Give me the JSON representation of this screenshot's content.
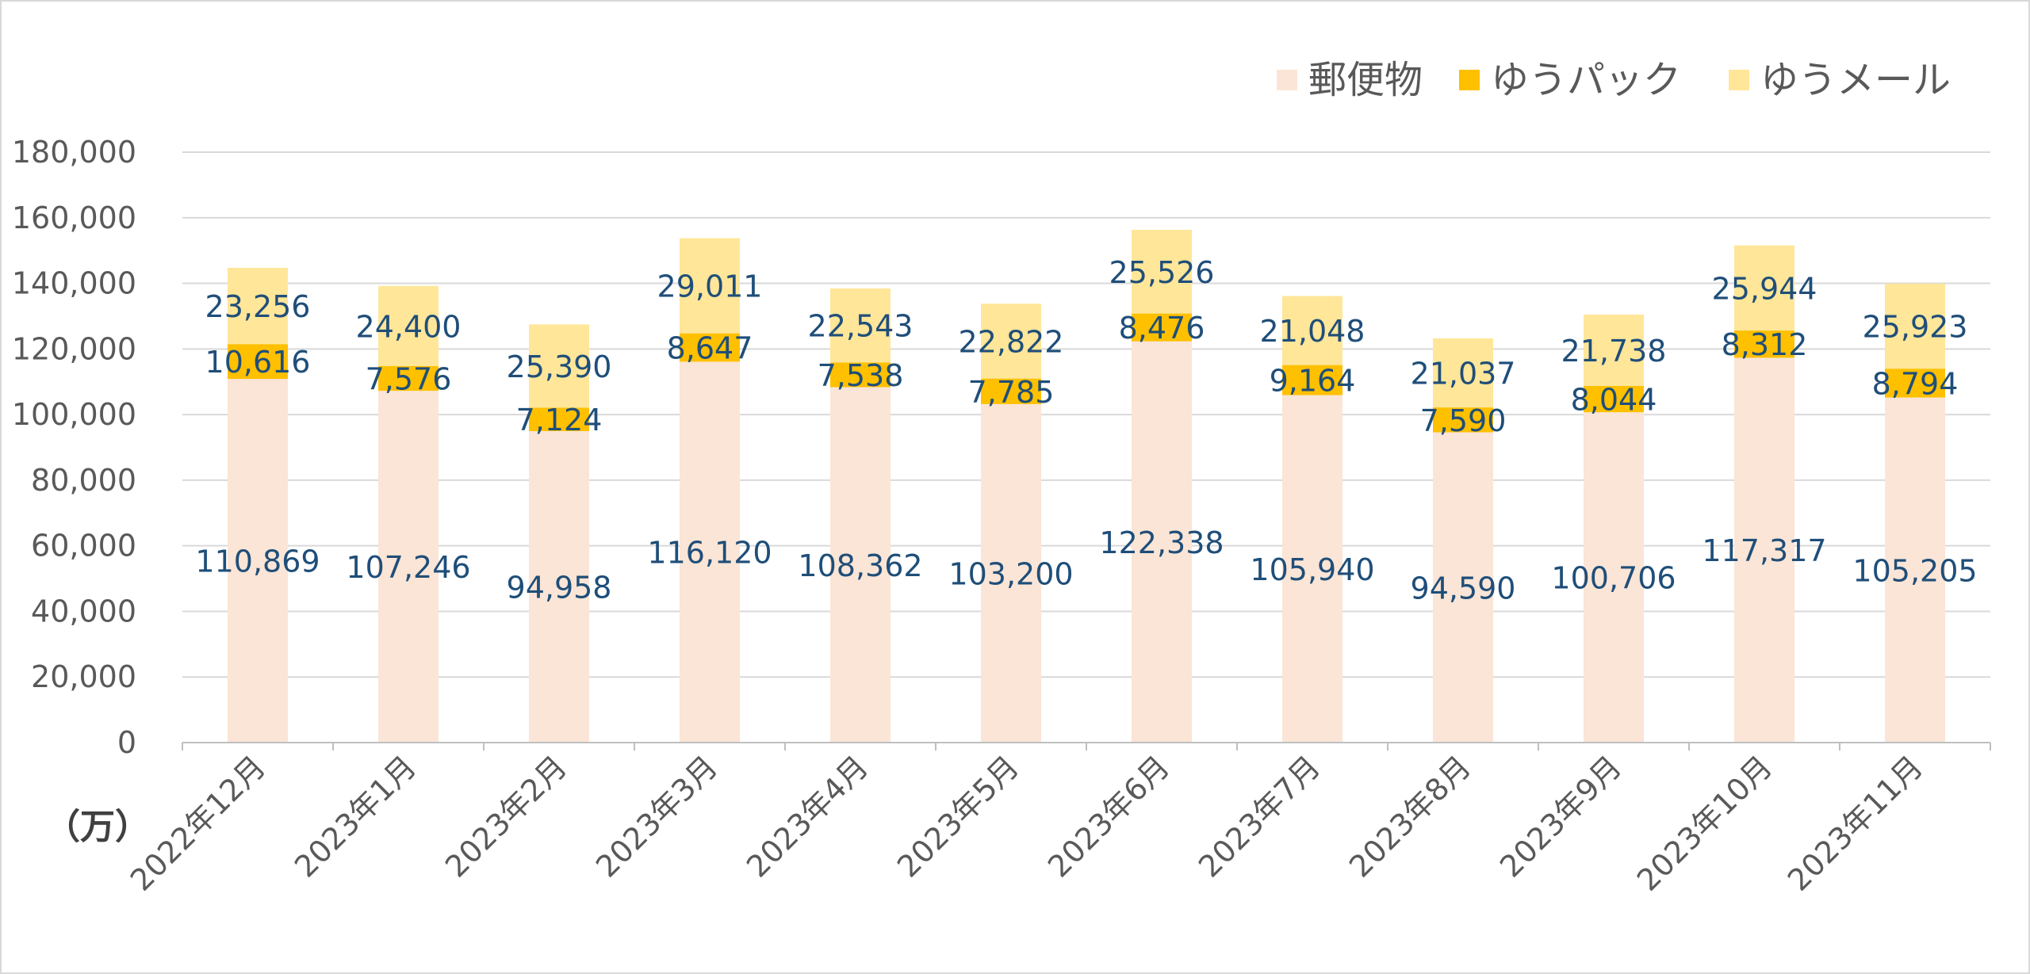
{
  "chart_data": {
    "type": "bar",
    "stacked": true,
    "unit_label": "（万）",
    "categories": [
      "2022年12月",
      "2023年1月",
      "2023年2月",
      "2023年3月",
      "2023年4月",
      "2023年5月",
      "2023年6月",
      "2023年7月",
      "2023年8月",
      "2023年9月",
      "2023年10月",
      "2023年11月"
    ],
    "series": [
      {
        "name": "郵便物",
        "color": "#fbe5d6",
        "values": [
          110869,
          107246,
          94958,
          116120,
          108362,
          103200,
          122338,
          105940,
          94590,
          100706,
          117317,
          105205
        ]
      },
      {
        "name": "ゆうパック",
        "color": "#ffc000",
        "values": [
          10616,
          7576,
          7124,
          8647,
          7538,
          7785,
          8476,
          9164,
          7590,
          8044,
          8312,
          8794
        ]
      },
      {
        "name": "ゆうメール",
        "color": "#ffe699",
        "values": [
          23256,
          24400,
          25390,
          29011,
          22543,
          22822,
          25526,
          21048,
          21037,
          21738,
          25944,
          25923
        ]
      }
    ],
    "ylim": [
      0,
      180000
    ],
    "y_ticks": [
      "0",
      "20,000",
      "40,000",
      "60,000",
      "80,000",
      "100,000",
      "120,000",
      "140,000",
      "160,000",
      "180,000"
    ],
    "grid": true,
    "legend_position": "top-right",
    "label_color": "#1f4e79"
  }
}
